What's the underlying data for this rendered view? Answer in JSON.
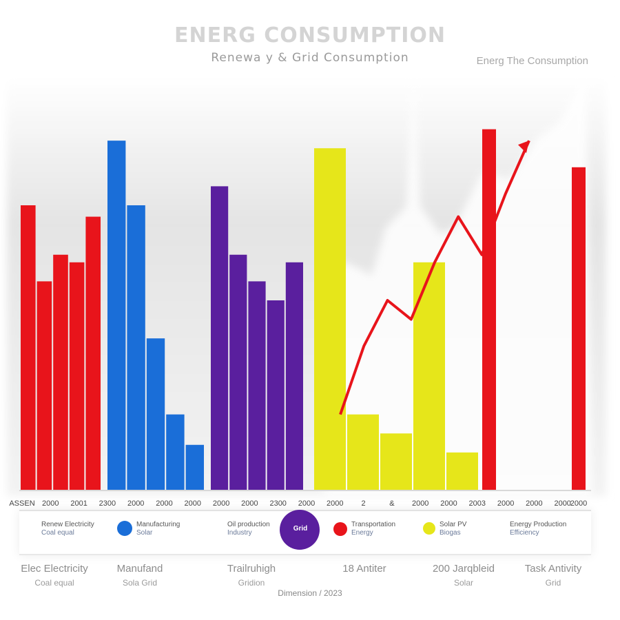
{
  "chart_data": {
    "type": "bar",
    "title": "ENERG CONSUMPTION",
    "subtitle": "Renewa y & Grid Consumption",
    "side_title": "Energ The Consumption",
    "xlabel": "",
    "ylabel": "",
    "ylim": [
      0,
      100
    ],
    "series": [
      {
        "color": "#e8141b",
        "values": [
          75,
          55,
          62,
          60,
          72
        ]
      },
      {
        "color": "#1a6ed8",
        "values": [
          92,
          75,
          40,
          20,
          12
        ]
      },
      {
        "color": "#5a1f9e",
        "values": [
          80,
          62,
          55,
          50,
          60
        ]
      },
      {
        "color": "#e6e61a",
        "values": [
          90,
          20,
          15,
          60,
          10
        ]
      },
      {
        "color": "#e8141b",
        "values": [
          95,
          85
        ]
      }
    ],
    "trend": {
      "color": "#e8141b",
      "values": [
        20,
        38,
        50,
        45,
        60,
        72,
        62,
        78,
        92
      ]
    },
    "tick_labels": [
      "ASSEN",
      "2000",
      "2001",
      "2300",
      "2000",
      "2000",
      "2000",
      "2000",
      "2000",
      "2300",
      "2000",
      "2000",
      "2",
      "&",
      "2000",
      "2000",
      "2003",
      "2000",
      "2000",
      "2000",
      "2000"
    ]
  },
  "legend": [
    {
      "label": "Renew Electricity",
      "sub": "Coal equal"
    },
    {
      "label": "Manufacturing",
      "sub": "Solar"
    },
    {
      "label": "Oil production",
      "sub": "Industry"
    },
    {
      "label": "Grid",
      "sub": ""
    },
    {
      "label": "Transportation",
      "sub": "Energy"
    },
    {
      "label": "Solar PV",
      "sub": "Biogas"
    },
    {
      "label": "Energy Production",
      "sub": "Efficiency"
    }
  ],
  "captions": [
    {
      "title": "Elec Electricity",
      "sub": "Coal equal"
    },
    {
      "title": "Manufand",
      "sub": "Sola Grid"
    },
    {
      "title": "Trailruhigh",
      "sub": "Gridion"
    },
    {
      "title": "18 Antiter",
      "sub": ""
    },
    {
      "title": "200 Jarqbleid",
      "sub": "Solar"
    },
    {
      "title": "Task Antivity",
      "sub": "Grid"
    }
  ],
  "footer_note": "Dimension / 2023"
}
